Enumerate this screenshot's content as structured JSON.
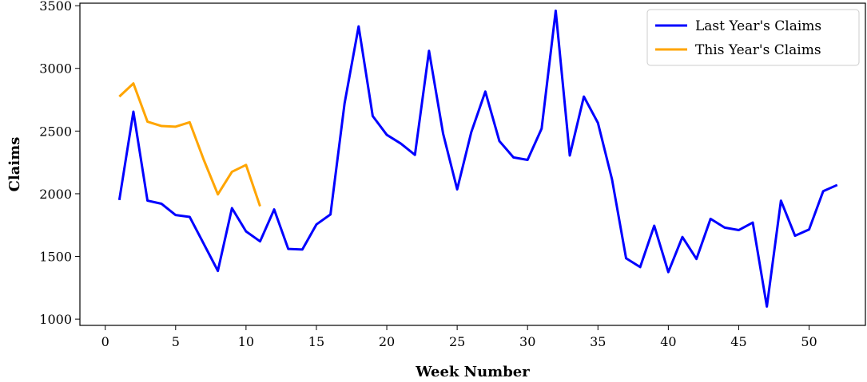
{
  "chart_data": {
    "type": "line",
    "xlabel": "Week Number",
    "ylabel": "Claims",
    "xlim": [
      -1.8,
      54
    ],
    "ylim": [
      950,
      3520
    ],
    "x_ticks": [
      0,
      5,
      10,
      15,
      20,
      25,
      30,
      35,
      40,
      45,
      50
    ],
    "y_ticks": [
      1000,
      1500,
      2000,
      2500,
      3000,
      3500
    ],
    "grid": false,
    "legend_position": "top-right",
    "series": [
      {
        "name": "Last Year's Claims",
        "color": "#0000ff",
        "x": [
          1,
          2,
          3,
          4,
          5,
          6,
          7,
          8,
          9,
          10,
          11,
          12,
          13,
          14,
          15,
          16,
          17,
          18,
          19,
          20,
          21,
          22,
          23,
          24,
          25,
          26,
          27,
          28,
          29,
          30,
          31,
          32,
          33,
          34,
          35,
          36,
          37,
          38,
          39,
          40,
          41,
          42,
          43,
          44,
          45,
          46,
          47,
          48,
          49,
          50,
          51,
          52
        ],
        "values": [
          1950,
          2655,
          1945,
          1920,
          1830,
          1815,
          1600,
          1385,
          1885,
          1700,
          1620,
          1875,
          1560,
          1555,
          1755,
          1835,
          2720,
          3335,
          2620,
          2470,
          2400,
          2310,
          3140,
          2480,
          2035,
          2490,
          2815,
          2420,
          2290,
          2270,
          2520,
          3460,
          2305,
          2775,
          2565,
          2115,
          1485,
          1415,
          1745,
          1375,
          1655,
          1480,
          1800,
          1730,
          1710,
          1770,
          1100,
          1945,
          1665,
          1715,
          2020,
          2070
        ]
      },
      {
        "name": "This Year's Claims",
        "color": "#ffa500",
        "x": [
          1,
          2,
          3,
          4,
          5,
          6,
          7,
          8,
          9,
          10,
          11
        ],
        "values": [
          2775,
          2880,
          2575,
          2540,
          2535,
          2570,
          2270,
          1995,
          2175,
          2230,
          1900
        ]
      }
    ]
  }
}
